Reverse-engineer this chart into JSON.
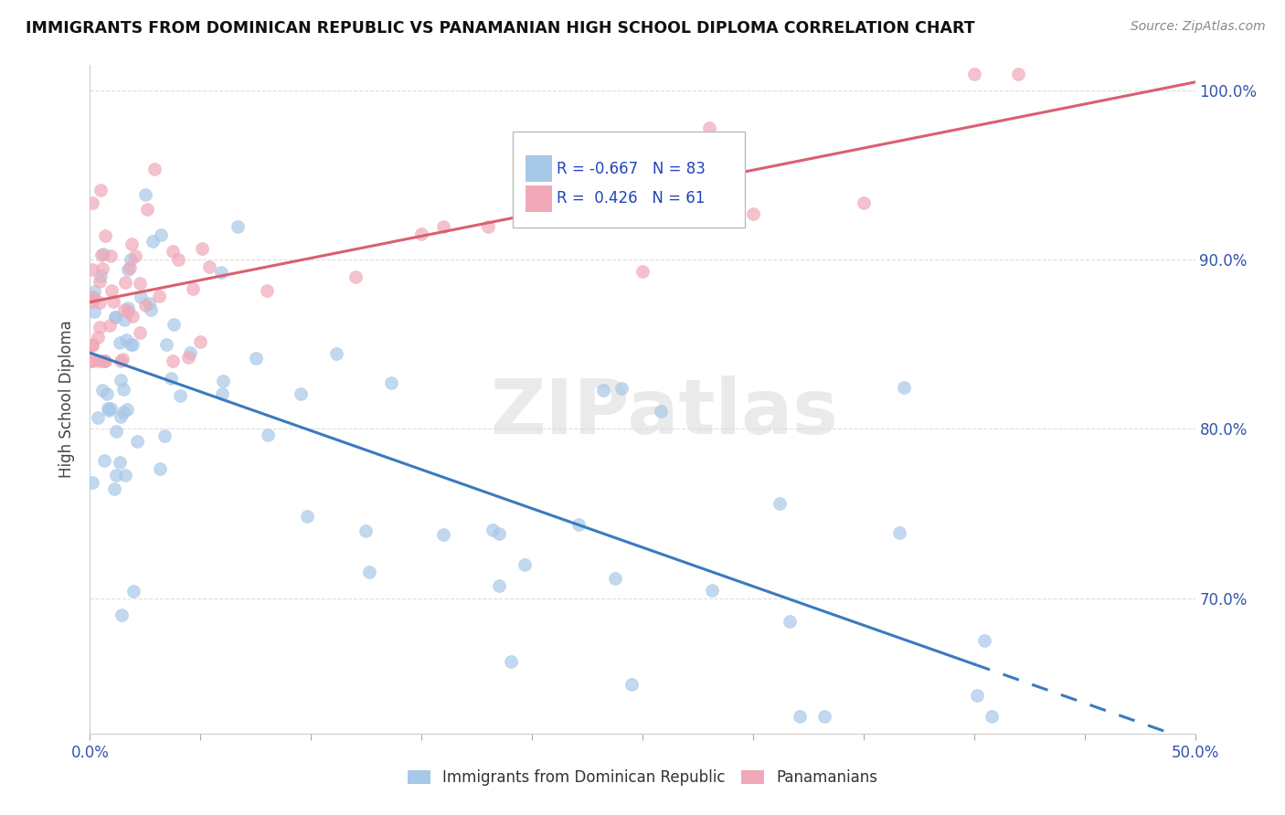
{
  "title": "IMMIGRANTS FROM DOMINICAN REPUBLIC VS PANAMANIAN HIGH SCHOOL DIPLOMA CORRELATION CHART",
  "source": "Source: ZipAtlas.com",
  "ylabel": "High School Diploma",
  "legend_blue_r": "-0.667",
  "legend_blue_n": "83",
  "legend_pink_r": "0.426",
  "legend_pink_n": "61",
  "legend_label_blue": "Immigrants from Dominican Republic",
  "legend_label_pink": "Panamanians",
  "xmin": 0.0,
  "xmax": 50.0,
  "ymin": 62.0,
  "ymax": 101.5,
  "y_ticks": [
    70.0,
    80.0,
    90.0,
    100.0
  ],
  "blue_color": "#a8c8e8",
  "pink_color": "#f0a8b8",
  "blue_line_color": "#3a7abf",
  "pink_line_color": "#d96070",
  "background_color": "#ffffff",
  "watermark": "ZIPatlas",
  "blue_line_x0": 0.0,
  "blue_line_y0": 84.5,
  "blue_line_x1": 50.0,
  "blue_line_y1": 61.5,
  "blue_solid_end": 40.0,
  "pink_line_x0": 0.0,
  "pink_line_y0": 87.5,
  "pink_line_x1": 50.0,
  "pink_line_y1": 100.5
}
